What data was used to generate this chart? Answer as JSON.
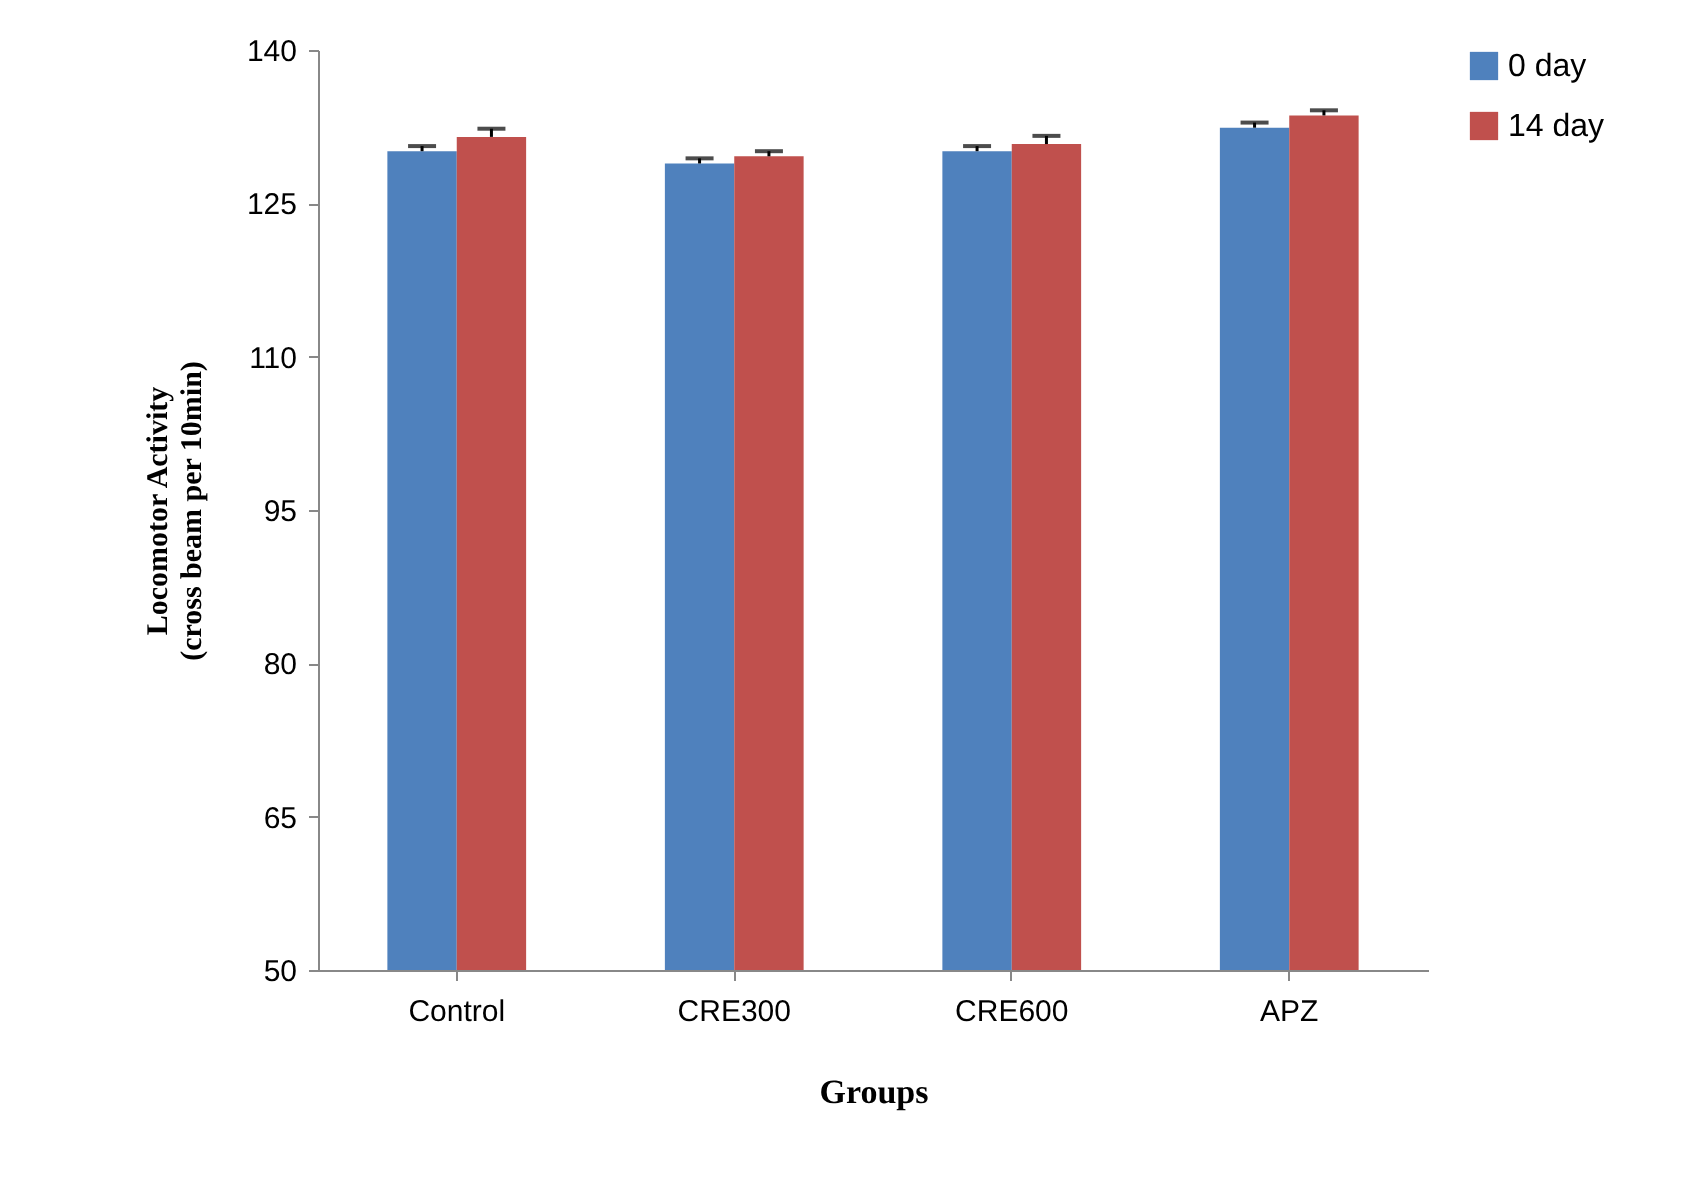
{
  "chart_data": {
    "type": "bar",
    "xlabel": "Groups",
    "ylabel": "Locomotor Activity\n(cross beam per 10min)",
    "categories": [
      "Control",
      "CRE300",
      "CRE600",
      "APZ"
    ],
    "series": [
      {
        "name": "0 day",
        "color": "#4f81bd",
        "values": [
          130.1,
          128.9,
          130.1,
          132.4
        ],
        "errors": [
          [
            130.1,
            130.6
          ],
          [
            128.9,
            129.4
          ],
          [
            130.1,
            130.6
          ],
          [
            132.4,
            132.9
          ]
        ]
      },
      {
        "name": "14 day",
        "color": "#c0504d",
        "values": [
          131.5,
          129.6,
          130.8,
          133.6
        ],
        "errors": [
          [
            131.5,
            132.3
          ],
          [
            129.6,
            130.1
          ],
          [
            130.8,
            131.6
          ],
          [
            133.6,
            134.1
          ]
        ]
      }
    ],
    "ylim": [
      50,
      140
    ],
    "yticks": [
      50,
      65,
      80,
      95,
      110,
      125,
      140
    ],
    "grid": false,
    "legend": "right"
  }
}
